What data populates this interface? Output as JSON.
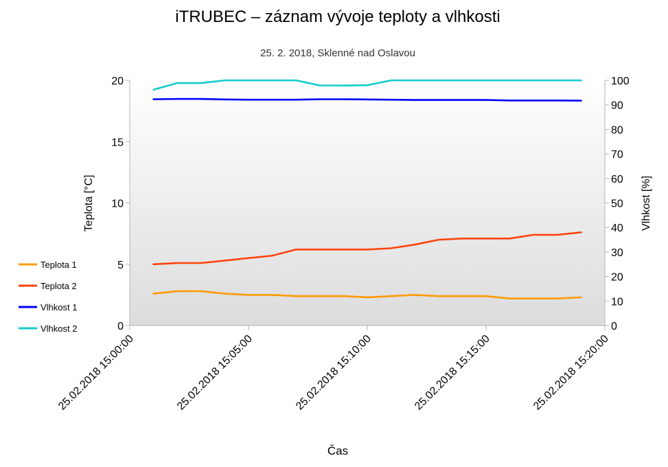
{
  "chart_data": {
    "type": "line",
    "title": "iTRUBEC – záznam vývoje teploty a vlhkosti",
    "subtitle": "25. 2. 2018, Sklenné nad Oslavou",
    "xlabel": "Čas",
    "ylabel": "Teplota [°C]",
    "y2label": "Vlhkost [%]",
    "x_ticks": [
      "25.02.2018 15:00:00",
      "25.02.2018 15:05:00",
      "25.02.2018 15:10:00",
      "25.02.2018 15:15:00",
      "25.02.2018 15:20:00"
    ],
    "x_minutes": [
      1,
      2,
      3,
      4,
      5,
      6,
      7,
      8,
      9,
      10,
      11,
      12,
      13,
      14,
      15,
      16,
      17,
      18,
      19
    ],
    "xlim": [
      0,
      20
    ],
    "ylim": [
      0,
      20
    ],
    "y_ticks": [
      "0",
      "5",
      "10",
      "15",
      "20"
    ],
    "y2lim": [
      0,
      100
    ],
    "y2_ticks": [
      "0",
      "10",
      "20",
      "30",
      "40",
      "50",
      "60",
      "70",
      "80",
      "90",
      "100"
    ],
    "legend_position": "left",
    "background": "gradient-grey",
    "series": [
      {
        "name": "Teplota 1",
        "axis": "left",
        "color": "#ff9900",
        "values": [
          2.6,
          2.8,
          2.8,
          2.6,
          2.5,
          2.5,
          2.4,
          2.4,
          2.4,
          2.3,
          2.4,
          2.5,
          2.4,
          2.4,
          2.4,
          2.2,
          2.2,
          2.2,
          2.3
        ]
      },
      {
        "name": "Teplota 2",
        "axis": "left",
        "color": "#ff420e",
        "values": [
          5.0,
          5.1,
          5.1,
          5.3,
          5.5,
          5.7,
          6.2,
          6.2,
          6.2,
          6.2,
          6.3,
          6.6,
          7.0,
          7.1,
          7.1,
          7.1,
          7.4,
          7.4,
          7.6
        ]
      },
      {
        "name": "Vlhkost 1",
        "axis": "right",
        "color": "#0000ff",
        "values": [
          92.3,
          92.4,
          92.4,
          92.2,
          92.1,
          92.1,
          92.1,
          92.3,
          92.3,
          92.2,
          92.1,
          92.0,
          92.0,
          92.0,
          92.0,
          91.8,
          91.8,
          91.8,
          91.7
        ]
      },
      {
        "name": "Vlhkost 2",
        "axis": "right",
        "color": "#11cccc",
        "values": [
          96.2,
          98.9,
          98.9,
          100,
          100,
          100,
          100,
          97.9,
          97.9,
          98.0,
          100,
          100,
          100,
          100,
          100,
          100,
          100,
          100,
          100
        ]
      }
    ]
  }
}
